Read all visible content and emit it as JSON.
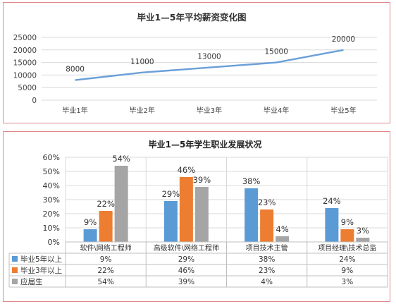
{
  "chart_data": [
    {
      "type": "line",
      "title": "毕业1—5年平均薪资变化图",
      "categories": [
        "毕业1年",
        "毕业2年",
        "毕业3年",
        "毕业4年",
        "毕业5年"
      ],
      "values": [
        8000,
        11000,
        13000,
        15000,
        20000
      ],
      "data_labels": [
        "8000",
        "11000",
        "13000",
        "15000",
        "20000"
      ],
      "yticks": [
        "0",
        "5000",
        "10000",
        "15000",
        "20000",
        "25000"
      ],
      "ylim": [
        0,
        25000
      ],
      "grid": true,
      "colors": {
        "line": "#6a9fd8"
      }
    },
    {
      "type": "bar",
      "title": "毕业1—5年学生职业发展状况",
      "categories": [
        "软件\\网络工程师",
        "高级软件\\网络工程师",
        "项目技术主管",
        "项目经理\\技术总监"
      ],
      "series": [
        {
          "name": "毕业5年以上",
          "values": [
            9,
            29,
            38,
            24
          ],
          "labels": [
            "9%",
            "29%",
            "38%",
            "24%"
          ],
          "color": "#5b9bd5"
        },
        {
          "name": "毕业3年以上",
          "values": [
            22,
            46,
            23,
            9
          ],
          "labels": [
            "22%",
            "46%",
            "23%",
            "9%"
          ],
          "color": "#ed7d31"
        },
        {
          "name": "应届生",
          "values": [
            54,
            39,
            4,
            3
          ],
          "labels": [
            "54%",
            "39%",
            "4%",
            "3%"
          ],
          "color": "#a5a5a5"
        }
      ],
      "yticks": [
        "0%",
        "10%",
        "20%",
        "30%",
        "40%",
        "50%",
        "60%"
      ],
      "ylim": [
        0,
        60
      ],
      "grid": true,
      "data_table": true
    }
  ]
}
